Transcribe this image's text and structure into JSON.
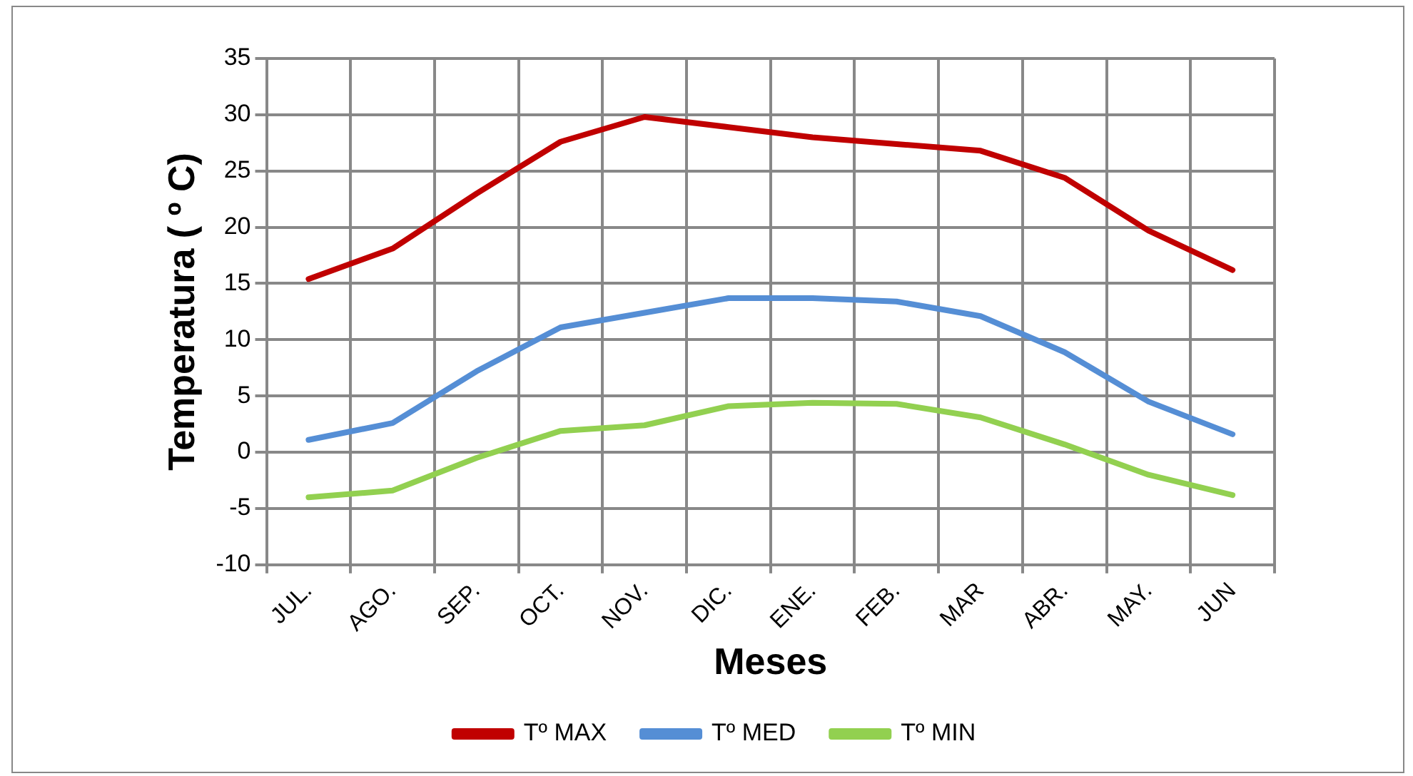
{
  "chart_data": {
    "type": "line",
    "xlabel": "Meses",
    "ylabel": "Temperatura ( º C)",
    "categories": [
      "JUL.",
      "AGO.",
      "SEP.",
      "OCT.",
      "NOV.",
      "DIC.",
      "ENE.",
      "FEB.",
      "MAR",
      "ABR.",
      "MAY.",
      "JUN"
    ],
    "series": [
      {
        "name": "Tº MAX",
        "color": "#c00000",
        "values": [
          15.4,
          18.1,
          23,
          27.6,
          29.8,
          28.9,
          28.0,
          27.4,
          26.8,
          24.4,
          19.7,
          16.2
        ]
      },
      {
        "name": "Tº MED",
        "color": "#558ed5",
        "values": [
          1.1,
          2.6,
          7.2,
          11.1,
          12.4,
          13.7,
          13.7,
          13.4,
          12.1,
          8.9,
          4.5,
          1.6
        ]
      },
      {
        "name": "Tº MIN",
        "color": "#92d050",
        "values": [
          -4.0,
          -3.4,
          -0.5,
          1.9,
          2.4,
          4.1,
          4.4,
          4.3,
          3.1,
          0.7,
          -2.0,
          -3.8
        ]
      }
    ],
    "ylim": [
      -10,
      35
    ],
    "yticks": [
      -10,
      -5,
      0,
      5,
      10,
      15,
      20,
      25,
      30,
      35
    ],
    "grid": true,
    "legend": "bottom",
    "marker": "none",
    "line_style": "solid"
  }
}
